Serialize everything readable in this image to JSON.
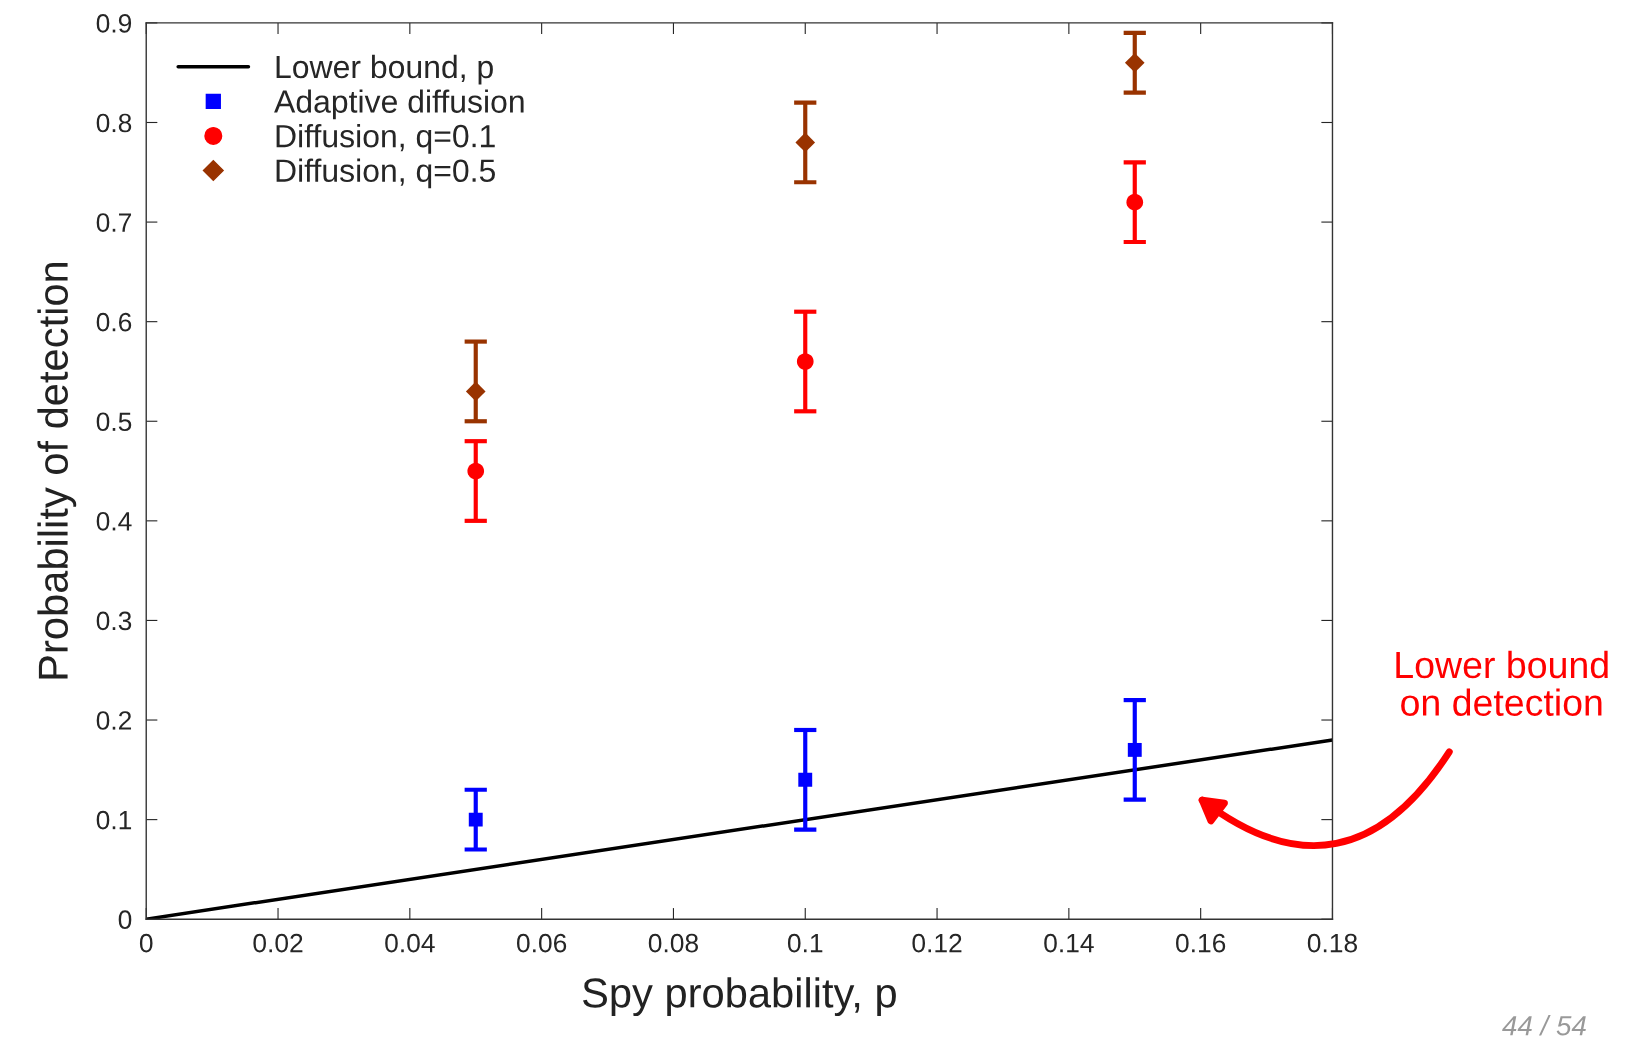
{
  "chart_data": {
    "type": "scatter",
    "xlabel": "Spy probability, p",
    "ylabel": "Probability of detection",
    "xlim": [
      0,
      0.18
    ],
    "ylim": [
      0,
      0.9
    ],
    "xticks": [
      0,
      0.02,
      0.04,
      0.06,
      0.08,
      0.1,
      0.12,
      0.14,
      0.16,
      0.18
    ],
    "yticks": [
      0,
      0.1,
      0.2,
      0.3,
      0.4,
      0.5,
      0.6,
      0.7,
      0.8,
      0.9
    ],
    "grid": false,
    "legend": "top left",
    "series": [
      {
        "name": "Lower bound, p",
        "type": "line",
        "color": "#000000",
        "x": [
          0,
          0.18
        ],
        "values": [
          0,
          0.18
        ],
        "marker": "none",
        "line_style": "solid"
      },
      {
        "name": "Adaptive diffusion",
        "color": "#0000ff",
        "marker": "square",
        "x": [
          0.05,
          0.1,
          0.15
        ],
        "values": [
          0.1,
          0.14,
          0.17
        ],
        "errors": [
          [
            0.07,
            0.13
          ],
          [
            0.09,
            0.19
          ],
          [
            0.12,
            0.22
          ]
        ]
      },
      {
        "name": "Diffusion, q=0.1",
        "color": "#ff0000",
        "marker": "circle",
        "x": [
          0.05,
          0.1,
          0.15
        ],
        "values": [
          0.45,
          0.56,
          0.72
        ],
        "errors": [
          [
            0.4,
            0.48
          ],
          [
            0.51,
            0.61
          ],
          [
            0.68,
            0.76
          ]
        ]
      },
      {
        "name": "Diffusion, q=0.5",
        "color": "#993300",
        "marker": "diamond",
        "x": [
          0.05,
          0.1,
          0.15
        ],
        "values": [
          0.53,
          0.78,
          0.86
        ],
        "errors": [
          [
            0.5,
            0.58
          ],
          [
            0.74,
            0.82
          ],
          [
            0.83,
            0.89
          ]
        ]
      }
    ],
    "annotations": [
      "Lower bound\non detection",
      "44 / 54"
    ]
  }
}
